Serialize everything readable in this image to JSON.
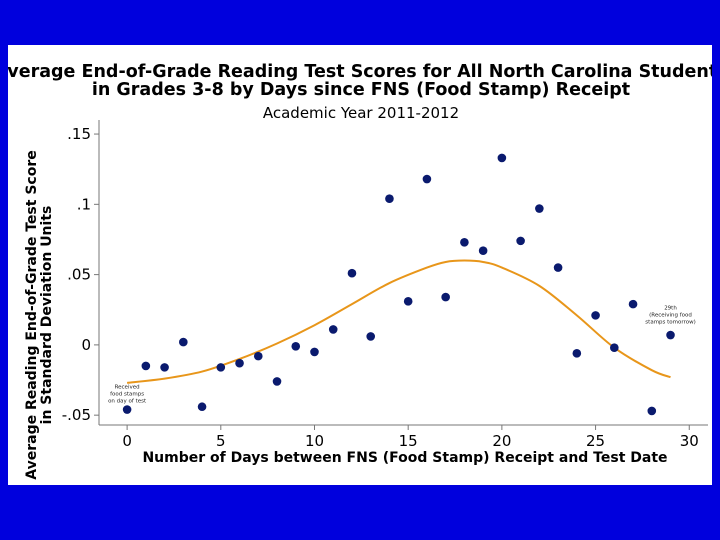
{
  "slide": {
    "background": "#0000dd",
    "panel_background": "#ffffff"
  },
  "chart_data": {
    "type": "scatter",
    "title_line1": "Average End-of-Grade Reading Test Scores for All North Carolina Students",
    "title_line2": "in Grades 3-8 by Days since FNS (Food Stamp) Receipt",
    "subtitle": "Academic Year 2011-2012",
    "xlabel": "Number of Days between FNS (Food Stamp) Receipt and Test Date",
    "ylabel_line1": "Average Reading End-of-Grade Test Score",
    "ylabel_line2": "in Standard Deviation Units",
    "xlim": [
      -1.5,
      31
    ],
    "ylim": [
      -0.057,
      0.16
    ],
    "x_ticks": [
      0,
      5,
      10,
      15,
      20,
      25,
      30
    ],
    "x_tick_labels": [
      "0",
      "5",
      "10",
      "15",
      "20",
      "25",
      "30"
    ],
    "y_ticks": [
      -0.05,
      0,
      0.05,
      0.1,
      0.15
    ],
    "y_tick_labels": [
      "-.05",
      "0",
      ".05",
      ".1",
      ".15"
    ],
    "grid": false,
    "series": [
      {
        "name": "Average score",
        "kind": "points",
        "color": "#0a1a6e",
        "x": [
          0,
          1,
          2,
          3,
          4,
          5,
          6,
          7,
          8,
          9,
          10,
          11,
          12,
          13,
          14,
          15,
          16,
          17,
          18,
          19,
          20,
          21,
          22,
          23,
          24,
          25,
          26,
          27,
          28,
          29
        ],
        "y": [
          -0.046,
          -0.015,
          -0.016,
          0.002,
          -0.044,
          -0.016,
          -0.013,
          -0.008,
          -0.026,
          -0.001,
          -0.005,
          0.011,
          0.051,
          0.006,
          0.104,
          0.031,
          0.118,
          0.034,
          0.073,
          0.067,
          0.133,
          0.074,
          0.097,
          0.055,
          -0.006,
          0.021,
          -0.002,
          0.029,
          -0.047,
          0.007
        ]
      },
      {
        "name": "Smoothed fit",
        "kind": "line",
        "color": "#e8961a",
        "x": [
          0,
          2,
          4,
          6,
          8,
          10,
          12,
          14,
          16,
          17,
          18,
          19,
          20,
          22,
          24,
          26,
          28,
          29
        ],
        "y": [
          -0.027,
          -0.024,
          -0.019,
          -0.01,
          0.001,
          0.014,
          0.029,
          0.044,
          0.055,
          0.059,
          0.06,
          0.059,
          0.055,
          0.042,
          0.021,
          -0.002,
          -0.018,
          -0.023
        ]
      }
    ],
    "annotations": [
      {
        "at_x": 0,
        "at_y": -0.031,
        "lines": [
          "Received",
          "food stamps",
          "on day of test"
        ]
      },
      {
        "at_x": 29,
        "at_y": 0.025,
        "lines": [
          "29th",
          "(Receiving food",
          "stamps tomorrow)"
        ]
      }
    ]
  }
}
